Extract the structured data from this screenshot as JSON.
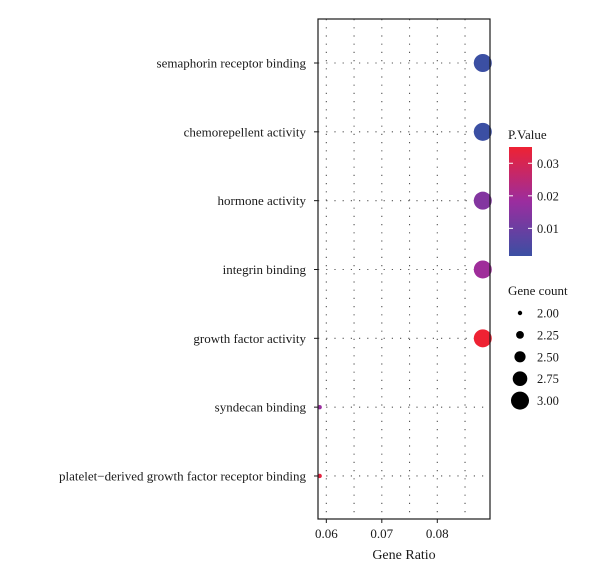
{
  "chart_data": {
    "type": "scatter",
    "title": "",
    "xlabel": "Gene Ratio",
    "ylabel": "",
    "xlim": [
      0.0585,
      0.0895
    ],
    "xticks": [
      0.06,
      0.07,
      0.08
    ],
    "xtick_labels": [
      "0.06",
      "0.07",
      "0.08"
    ],
    "grid": "dotted",
    "legend_placement": "right",
    "categories": [
      "semaphorin receptor binding",
      "chemorepellent activity",
      "hormone activity",
      "integrin binding",
      "growth factor activity",
      "syndecan binding",
      "platelet−derived growth factor receptor binding"
    ],
    "points": [
      {
        "term": "semaphorin receptor binding",
        "gene_ratio": 0.0882,
        "p_value": 0.0015,
        "gene_count": 3
      },
      {
        "term": "chemorepellent activity",
        "gene_ratio": 0.0882,
        "p_value": 0.0015,
        "gene_count": 3
      },
      {
        "term": "hormone activity",
        "gene_ratio": 0.0882,
        "p_value": 0.014,
        "gene_count": 3
      },
      {
        "term": "integrin binding",
        "gene_ratio": 0.0882,
        "p_value": 0.019,
        "gene_count": 3
      },
      {
        "term": "growth factor activity",
        "gene_ratio": 0.0882,
        "p_value": 0.035,
        "gene_count": 3
      },
      {
        "term": "syndecan binding",
        "gene_ratio": 0.0588,
        "p_value": 0.018,
        "gene_count": 2
      },
      {
        "term": "platelet−derived growth factor receptor binding",
        "gene_ratio": 0.0588,
        "p_value": 0.033,
        "gene_count": 2
      }
    ],
    "color_legend": {
      "title": "P.Value",
      "min": 0.0015,
      "max": 0.035,
      "ticks": [
        0.01,
        0.02,
        0.03
      ],
      "tick_labels": [
        "0.01",
        "0.02",
        "0.03"
      ],
      "low_color": "#3B4FA3",
      "mid_color": "#9B2D9F",
      "high_color": "#EE2233"
    },
    "size_legend": {
      "title": "Gene count",
      "values": [
        2.0,
        2.25,
        2.5,
        2.75,
        3.0
      ],
      "labels": [
        "2.00",
        "2.25",
        "2.50",
        "2.75",
        "3.00"
      ]
    }
  }
}
